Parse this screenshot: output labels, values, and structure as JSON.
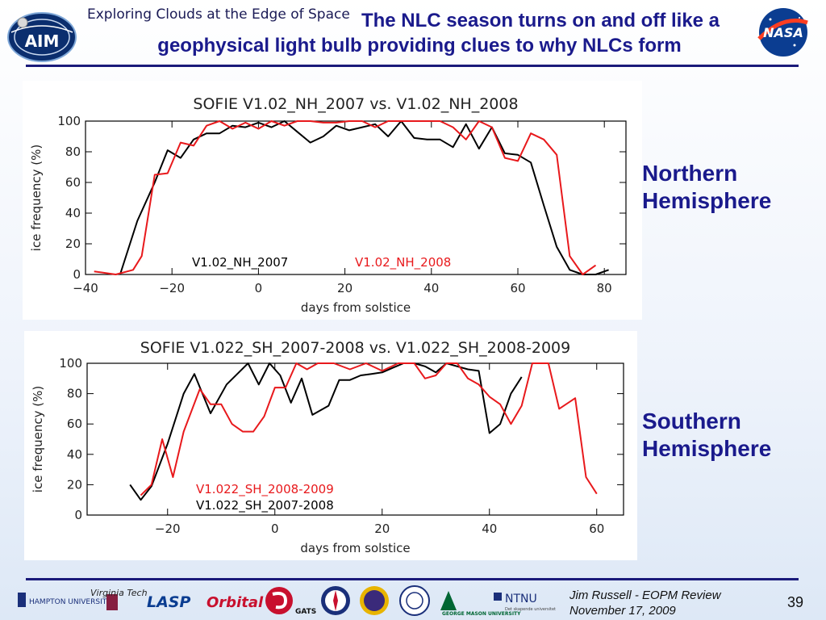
{
  "header": {
    "tagline": "Exploring Clouds at the Edge of Space",
    "title_line_1": "The NLC season turns on and off like a",
    "title_line_2": "geophysical light bulb providing clues to why NLCs form",
    "aim_logo_text": "AIM",
    "nasa_logo_text": "NASA"
  },
  "labels": {
    "nh_line_1": "Northern",
    "nh_line_2": "Hemisphere",
    "sh_line_1": "Southern",
    "sh_line_2": "Hemisphere"
  },
  "footer": {
    "author": "Jim Russell  -  EOPM Review",
    "date": "November 17, 2009",
    "page_number": "39",
    "logos": [
      "HAMPTON UNIVERSITY",
      "Virginia Tech",
      "LASP",
      "Orbital",
      "GATS",
      "",
      "",
      "",
      "GEORGE MASON UNIVERSITY",
      "NTNU"
    ],
    "ntnu_subtitle": "Det skapende universitet"
  },
  "colors": {
    "title": "#1a1a8c",
    "series_2007": "#000000",
    "series_2008": "#e8191c"
  },
  "chart_data": [
    {
      "type": "line",
      "title": "SOFIE V1.02_NH_2007 vs. V1.02_NH_2008",
      "xlabel": "days from solstice",
      "ylabel": "ice frequency (%)",
      "xlim": [
        -40,
        85
      ],
      "ylim": [
        0,
        100
      ],
      "xticks": [
        -40,
        -20,
        0,
        20,
        40,
        60,
        80
      ],
      "yticks": [
        0,
        20,
        40,
        60,
        80,
        100
      ],
      "legend_position": "bottom-left",
      "series": [
        {
          "name": "V1.02_NH_2007",
          "color": "#000000",
          "x": [
            -32,
            -28,
            -24,
            -21,
            -18,
            -15,
            -12,
            -9,
            -6,
            -3,
            0,
            3,
            6,
            9,
            12,
            15,
            18,
            21,
            24,
            27,
            30,
            33,
            36,
            39,
            42,
            45,
            48,
            51,
            54,
            57,
            60,
            63,
            66,
            69,
            72,
            75,
            78,
            81
          ],
          "y": [
            0,
            35,
            60,
            81,
            76,
            88,
            92,
            92,
            97,
            96,
            99,
            96,
            100,
            93,
            86,
            90,
            97,
            94,
            96,
            98,
            90,
            100,
            89,
            88,
            88,
            83,
            98,
            82,
            96,
            79,
            78,
            73,
            45,
            18,
            3,
            0,
            0,
            3
          ]
        },
        {
          "name": "V1.02_NH_2008",
          "color": "#e8191c",
          "x": [
            -38,
            -33,
            -29,
            -27,
            -24,
            -21,
            -18,
            -15,
            -12,
            -9,
            -6,
            -3,
            0,
            3,
            6,
            9,
            12,
            15,
            18,
            21,
            24,
            27,
            30,
            33,
            36,
            39,
            42,
            45,
            48,
            51,
            54,
            57,
            60,
            63,
            66,
            69,
            72,
            75,
            78
          ],
          "y": [
            2,
            0,
            3,
            12,
            65,
            66,
            86,
            84,
            97,
            100,
            95,
            99,
            95,
            100,
            97,
            100,
            100,
            99,
            99,
            100,
            100,
            96,
            100,
            100,
            100,
            100,
            100,
            96,
            88,
            100,
            96,
            76,
            74,
            92,
            88,
            78,
            12,
            0,
            6
          ]
        }
      ]
    },
    {
      "type": "line",
      "title": "SOFIE V1.022_SH_2007-2008 vs. V1.022_SH_2008-2009",
      "xlabel": "days from solstice",
      "ylabel": "ice frequency (%)",
      "xlim": [
        -35,
        65
      ],
      "ylim": [
        0,
        100
      ],
      "xticks": [
        -20,
        0,
        20,
        40,
        60
      ],
      "yticks": [
        0,
        20,
        40,
        60,
        80,
        100
      ],
      "legend_position": "bottom-left",
      "series": [
        {
          "name": "V1.022_SH_2007-2008",
          "color": "#000000",
          "x": [
            -27,
            -25,
            -23,
            -20,
            -17,
            -15,
            -12,
            -9,
            -7,
            -5,
            -3,
            -1,
            1,
            3,
            5,
            7,
            10,
            12,
            14,
            16,
            18,
            20,
            22,
            24,
            26,
            28,
            30,
            32,
            34,
            36,
            38,
            40,
            42,
            44,
            46
          ],
          "y": [
            20,
            10,
            19,
            47,
            80,
            93,
            67,
            86,
            93,
            100,
            86,
            100,
            92,
            74,
            90,
            66,
            72,
            89,
            89,
            92,
            93,
            94,
            97,
            100,
            100,
            98,
            94,
            100,
            98,
            96,
            95,
            54,
            60,
            80,
            91
          ]
        },
        {
          "name": "V1.022_SH_2008-2009",
          "color": "#e8191c",
          "x": [
            -25,
            -23,
            -21,
            -19,
            -17,
            -14,
            -12,
            -10,
            -8,
            -6,
            -4,
            -2,
            0,
            2,
            4,
            6,
            8,
            11,
            14,
            17,
            20,
            23,
            26,
            28,
            30,
            32,
            34,
            36,
            38,
            40,
            42,
            44,
            46,
            48,
            51,
            53,
            56,
            58,
            60
          ],
          "y": [
            13,
            20,
            50,
            25,
            55,
            83,
            73,
            73,
            60,
            55,
            55,
            65,
            84,
            84,
            100,
            96,
            100,
            100,
            96,
            100,
            95,
            100,
            100,
            90,
            92,
            100,
            100,
            90,
            86,
            78,
            73,
            60,
            72,
            100,
            100,
            70,
            77,
            25,
            14
          ]
        }
      ]
    }
  ]
}
